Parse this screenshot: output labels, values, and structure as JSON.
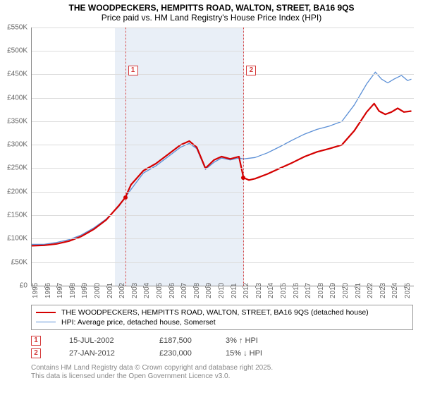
{
  "title_line1": "THE WOODPECKERS, HEMPITTS ROAD, WALTON, STREET, BA16 9QS",
  "title_line2": "Price paid vs. HM Land Registry's House Price Index (HPI)",
  "chart": {
    "type": "line",
    "xlim": [
      1995,
      2025.8
    ],
    "ylim": [
      0,
      550000
    ],
    "ytick_step": 50000,
    "yticks": [
      "£0",
      "£50K",
      "£100K",
      "£150K",
      "£200K",
      "£250K",
      "£300K",
      "£350K",
      "£400K",
      "£450K",
      "£500K",
      "£550K"
    ],
    "xticks": [
      1995,
      1996,
      1997,
      1998,
      1999,
      2000,
      2001,
      2002,
      2003,
      2004,
      2005,
      2006,
      2007,
      2008,
      2009,
      2010,
      2011,
      2012,
      2013,
      2014,
      2015,
      2016,
      2017,
      2018,
      2019,
      2020,
      2021,
      2022,
      2023,
      2024,
      2025
    ],
    "grid_color": "#dcdcdc",
    "background_color": "#ffffff",
    "shaded_bands": [
      {
        "from": 2001.7,
        "to": 2012.1,
        "color": "#e9eff7"
      }
    ],
    "vlines": [
      {
        "x": 2002.53,
        "color": "#d43a3a"
      },
      {
        "x": 2012.07,
        "color": "#d43a3a"
      }
    ],
    "annotations": [
      {
        "n": "1",
        "x": 2002.53,
        "y_top": 54,
        "color": "#d43a3a"
      },
      {
        "n": "2",
        "x": 2012.07,
        "y_top": 54,
        "color": "#d43a3a"
      }
    ],
    "series": [
      {
        "name": "price_paid",
        "label": "THE WOODPECKERS, HEMPITTS ROAD, WALTON, STREET, BA16 9QS (detached house)",
        "color": "#d40000",
        "width": 2.2,
        "points": [
          [
            1995.0,
            85000
          ],
          [
            1996.0,
            86000
          ],
          [
            1997.0,
            89000
          ],
          [
            1998.0,
            95000
          ],
          [
            1999.0,
            105000
          ],
          [
            2000.0,
            120000
          ],
          [
            2001.0,
            140000
          ],
          [
            2002.0,
            170000
          ],
          [
            2002.53,
            187500
          ],
          [
            2003.0,
            215000
          ],
          [
            2004.0,
            245000
          ],
          [
            2005.0,
            260000
          ],
          [
            2006.0,
            280000
          ],
          [
            2007.0,
            300000
          ],
          [
            2007.7,
            308000
          ],
          [
            2008.3,
            295000
          ],
          [
            2009.0,
            250000
          ],
          [
            2009.7,
            268000
          ],
          [
            2010.3,
            275000
          ],
          [
            2011.0,
            270000
          ],
          [
            2011.7,
            275000
          ],
          [
            2012.07,
            230000
          ],
          [
            2012.5,
            225000
          ],
          [
            2013.0,
            228000
          ],
          [
            2014.0,
            238000
          ],
          [
            2015.0,
            250000
          ],
          [
            2016.0,
            262000
          ],
          [
            2017.0,
            275000
          ],
          [
            2018.0,
            285000
          ],
          [
            2019.0,
            292000
          ],
          [
            2020.0,
            300000
          ],
          [
            2021.0,
            330000
          ],
          [
            2022.0,
            370000
          ],
          [
            2022.6,
            388000
          ],
          [
            2023.0,
            372000
          ],
          [
            2023.5,
            365000
          ],
          [
            2024.0,
            370000
          ],
          [
            2024.5,
            378000
          ],
          [
            2025.0,
            370000
          ],
          [
            2025.6,
            372000
          ]
        ],
        "sale_dots": [
          {
            "x": 2002.53,
            "y": 187500
          },
          {
            "x": 2012.07,
            "y": 230000
          }
        ]
      },
      {
        "name": "hpi",
        "label": "HPI: Average price, detached house, Somerset",
        "color": "#5b8fd6",
        "width": 1.3,
        "points": [
          [
            1995.0,
            88000
          ],
          [
            1996.0,
            88000
          ],
          [
            1997.0,
            92000
          ],
          [
            1998.0,
            98000
          ],
          [
            1999.0,
            108000
          ],
          [
            2000.0,
            123000
          ],
          [
            2001.0,
            142000
          ],
          [
            2002.0,
            168000
          ],
          [
            2003.0,
            205000
          ],
          [
            2004.0,
            240000
          ],
          [
            2005.0,
            255000
          ],
          [
            2006.0,
            275000
          ],
          [
            2007.0,
            295000
          ],
          [
            2007.7,
            303000
          ],
          [
            2008.3,
            292000
          ],
          [
            2009.0,
            248000
          ],
          [
            2009.7,
            263000
          ],
          [
            2010.3,
            272000
          ],
          [
            2011.0,
            268000
          ],
          [
            2011.7,
            272000
          ],
          [
            2012.07,
            270000
          ],
          [
            2013.0,
            273000
          ],
          [
            2014.0,
            283000
          ],
          [
            2015.0,
            296000
          ],
          [
            2016.0,
            310000
          ],
          [
            2017.0,
            323000
          ],
          [
            2018.0,
            333000
          ],
          [
            2019.0,
            340000
          ],
          [
            2020.0,
            350000
          ],
          [
            2021.0,
            385000
          ],
          [
            2022.0,
            430000
          ],
          [
            2022.7,
            455000
          ],
          [
            2023.2,
            440000
          ],
          [
            2023.7,
            432000
          ],
          [
            2024.2,
            440000
          ],
          [
            2024.8,
            448000
          ],
          [
            2025.3,
            437000
          ],
          [
            2025.6,
            440000
          ]
        ]
      }
    ]
  },
  "legend": [
    {
      "label": "THE WOODPECKERS, HEMPITTS ROAD, WALTON, STREET, BA16 9QS (detached house)",
      "color": "#d40000",
      "width": 2.2
    },
    {
      "label": "HPI: Average price, detached house, Somerset",
      "color": "#5b8fd6",
      "width": 1.3
    }
  ],
  "marker_rows": [
    {
      "n": "1",
      "color": "#d43a3a",
      "date": "15-JUL-2002",
      "price": "£187,500",
      "delta": "3% ↑ HPI"
    },
    {
      "n": "2",
      "color": "#d43a3a",
      "date": "27-JAN-2012",
      "price": "£230,000",
      "delta": "15% ↓ HPI"
    }
  ],
  "attribution_line1": "Contains HM Land Registry data © Crown copyright and database right 2025.",
  "attribution_line2": "This data is licensed under the Open Government Licence v3.0."
}
